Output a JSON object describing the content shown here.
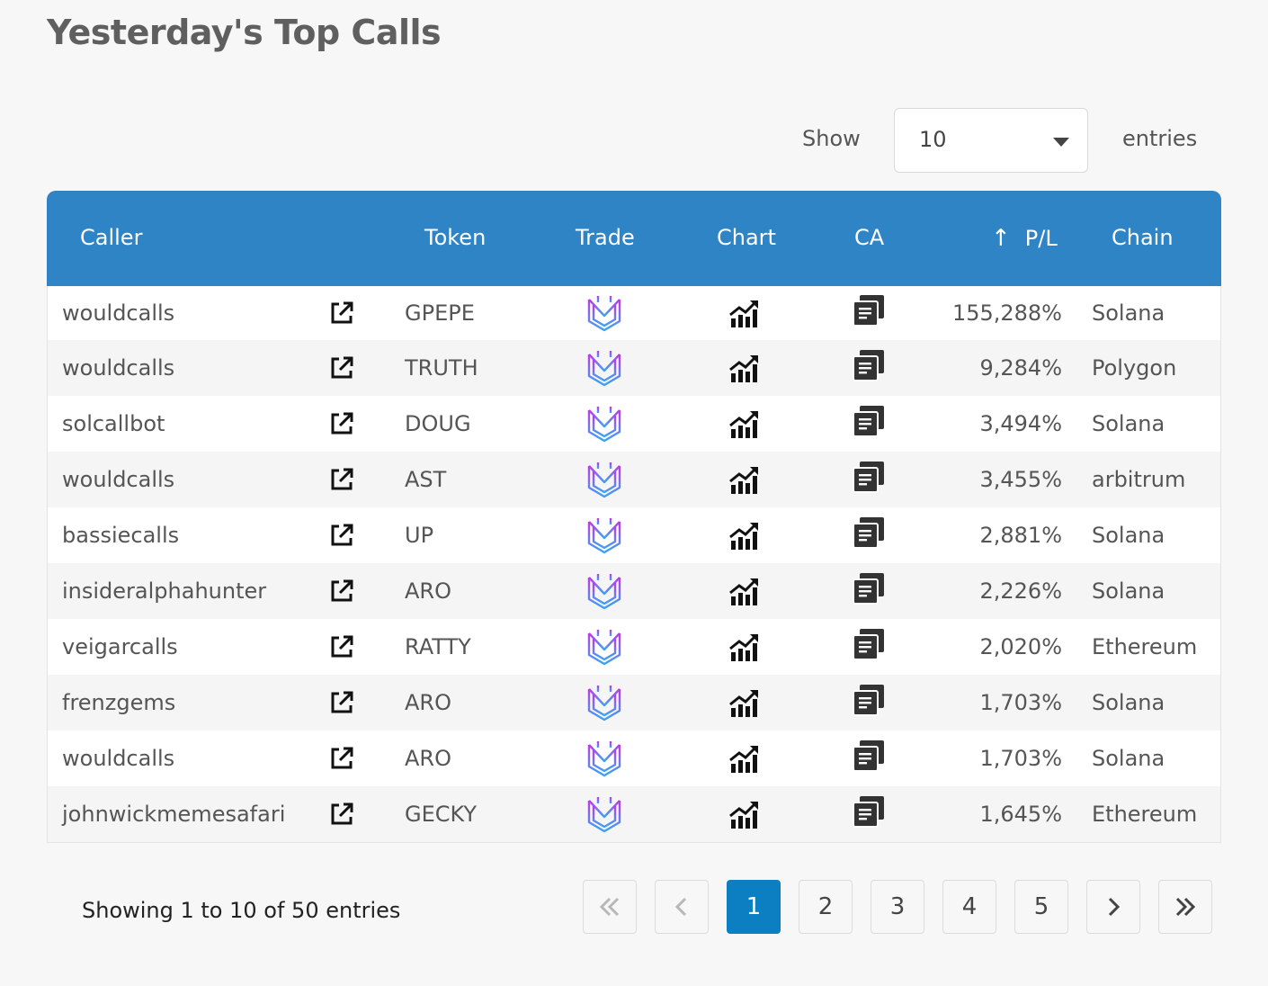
{
  "title": "Yesterday's Top Calls",
  "length_menu": {
    "show_label": "Show",
    "selected": "10",
    "entries_label": "entries"
  },
  "columns": {
    "caller": "Caller",
    "token": "Token",
    "trade": "Trade",
    "chart": "Chart",
    "ca": "CA",
    "pl": "P/L",
    "chain": "Chain"
  },
  "sort": {
    "column": "P/L",
    "direction": "descending"
  },
  "rows": [
    {
      "caller": "wouldcalls",
      "token": "GPEPE",
      "pl": "155,288%",
      "chain": "Solana"
    },
    {
      "caller": "wouldcalls",
      "token": "TRUTH",
      "pl": "9,284%",
      "chain": "Polygon"
    },
    {
      "caller": "solcallbot",
      "token": "DOUG",
      "pl": "3,494%",
      "chain": "Solana"
    },
    {
      "caller": "wouldcalls",
      "token": "AST",
      "pl": "3,455%",
      "chain": "arbitrum"
    },
    {
      "caller": "bassiecalls",
      "token": "UP",
      "pl": "2,881%",
      "chain": "Solana"
    },
    {
      "caller": "insideralphahunter",
      "token": "ARO",
      "pl": "2,226%",
      "chain": "Solana"
    },
    {
      "caller": "veigarcalls",
      "token": "RATTY",
      "pl": "2,020%",
      "chain": "Ethereum"
    },
    {
      "caller": "frenzgems",
      "token": "ARO",
      "pl": "1,703%",
      "chain": "Solana"
    },
    {
      "caller": "wouldcalls",
      "token": "ARO",
      "pl": "1,703%",
      "chain": "Solana"
    },
    {
      "caller": "johnwickmemesafari",
      "token": "GECKY",
      "pl": "1,645%",
      "chain": "Ethereum"
    }
  ],
  "icons": {
    "link": "external-link-icon",
    "trade": "trading-bot-logo-icon",
    "chart": "chart-growth-icon",
    "ca": "copy-icon",
    "sort": "sort-arrow-up-icon"
  },
  "info": "Showing 1 to 10 of 50 entries",
  "pagination": {
    "first": "first-page-icon",
    "previous": "previous-page-icon",
    "pages": [
      "1",
      "2",
      "3",
      "4",
      "5"
    ],
    "current": "1",
    "next": "next-page-icon",
    "last": "last-page-icon"
  },
  "colors": {
    "header": "#2f84c5",
    "active_page": "#0b7fc2",
    "title": "#5f5f5f"
  }
}
